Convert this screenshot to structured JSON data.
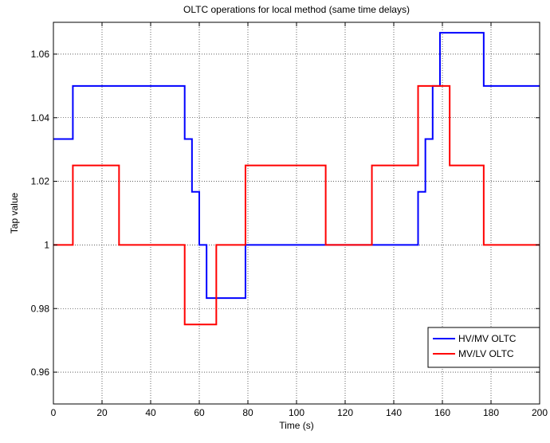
{
  "chart_data": {
    "type": "line",
    "title": "OLTC operations for local method (same time delays)",
    "xlabel": "Time (s)",
    "ylabel": "Tap value",
    "xlim": [
      0,
      200
    ],
    "ylim": [
      0.95,
      1.07
    ],
    "xticks": [
      0,
      20,
      40,
      60,
      80,
      100,
      120,
      140,
      160,
      180,
      200
    ],
    "yticks": [
      0.96,
      0.98,
      1,
      1.02,
      1.04,
      1.06
    ],
    "ytick_labels": [
      "0.96",
      "0.98",
      "1",
      "1.02",
      "1.04",
      "1.06"
    ],
    "grid": true,
    "legend_position": "bottom-right",
    "series": [
      {
        "name": "HV/MV OLTC",
        "color": "#0000ff",
        "step": true,
        "x": [
          0,
          8,
          54,
          57,
          60,
          63,
          79,
          150,
          153,
          156,
          159,
          177,
          200
        ],
        "y": [
          1.0333,
          1.05,
          1.0333,
          1.0167,
          1.0,
          0.9833,
          1.0,
          1.0167,
          1.0333,
          1.05,
          1.0667,
          1.05,
          1.05
        ]
      },
      {
        "name": "MV/LV OLTC",
        "color": "#ff0000",
        "step": true,
        "x": [
          0,
          8,
          27,
          54,
          67,
          79,
          112,
          131,
          150,
          163,
          177,
          200
        ],
        "y": [
          1.0,
          1.025,
          1.0,
          0.975,
          1.0,
          1.025,
          1.0,
          1.025,
          1.05,
          1.025,
          1.0,
          1.0
        ]
      }
    ]
  }
}
